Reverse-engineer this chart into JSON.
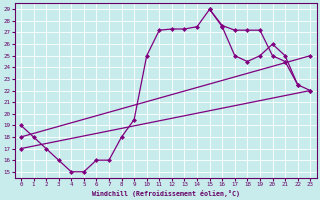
{
  "xlabel": "Windchill (Refroidissement éolien,°C)",
  "background_color": "#c8ecec",
  "grid_color": "#ffffff",
  "line_color": "#800080",
  "xlim_min": -0.5,
  "xlim_max": 23.5,
  "ylim_min": 14.5,
  "ylim_max": 29.5,
  "xticks": [
    0,
    1,
    2,
    3,
    4,
    5,
    6,
    7,
    8,
    9,
    10,
    11,
    12,
    13,
    14,
    15,
    16,
    17,
    18,
    19,
    20,
    21,
    22,
    23
  ],
  "yticks": [
    15,
    16,
    17,
    18,
    19,
    20,
    21,
    22,
    23,
    24,
    25,
    26,
    27,
    28,
    29
  ],
  "line1_x": [
    0,
    1,
    2,
    3,
    4,
    5,
    6,
    7,
    8,
    9,
    10,
    11,
    12,
    13,
    14,
    15,
    16,
    17,
    18,
    19,
    20,
    21,
    22
  ],
  "line1_y": [
    19,
    18,
    17,
    16,
    15,
    15,
    16,
    16,
    18,
    19.5,
    25,
    27.2,
    27.3,
    27.3,
    27.5,
    29,
    27.6,
    27.2,
    27.2,
    27.2,
    25,
    24.5,
    22.5
  ],
  "line2_x": [
    15,
    16,
    17,
    18,
    19,
    20,
    21,
    22,
    23
  ],
  "line2_y": [
    29,
    27.5,
    25,
    24.5,
    25,
    26,
    25,
    22.5,
    22
  ],
  "line3_x": [
    0,
    23
  ],
  "line3_y": [
    17,
    22
  ],
  "line4_x": [
    0,
    23
  ],
  "line4_y": [
    18,
    25
  ]
}
